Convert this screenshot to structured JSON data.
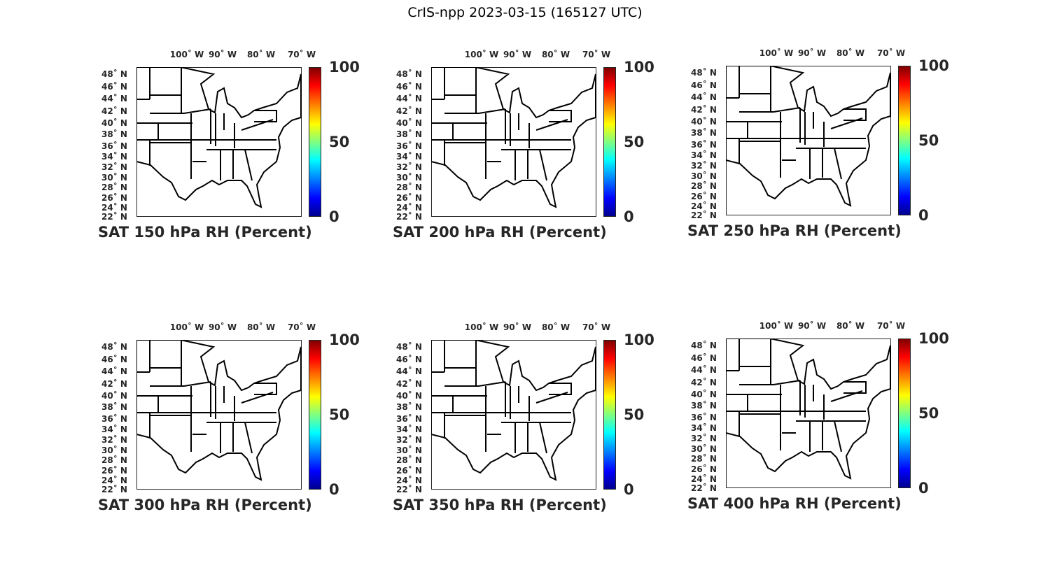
{
  "figure_title": "CrIS-npp 2023-03-15 (165127 UTC)",
  "lon_labels": [
    "100˚ W",
    "90˚ W",
    "80˚ W",
    "70˚ W"
  ],
  "lat_labels": [
    "48˚ N",
    "46˚ N",
    "44˚ N",
    "42˚ N",
    "40˚ N",
    "38˚ N",
    "36˚ N",
    "34˚ N",
    "32˚ N",
    "30˚ N",
    "28˚ N",
    "26˚ N",
    "24˚ N",
    "22˚ N"
  ],
  "colorbar": {
    "colormap": "jet",
    "min": 0,
    "max": 100,
    "ticks": [
      "100",
      "50",
      "0"
    ]
  },
  "panels": [
    {
      "title": "SAT 150 hPa RH (Percent)"
    },
    {
      "title": "SAT 200 hPa RH (Percent)"
    },
    {
      "title": "SAT 250 hPa RH (Percent)"
    },
    {
      "title": "SAT 300 hPa RH (Percent)"
    },
    {
      "title": "SAT 350 hPa RH (Percent)"
    },
    {
      "title": "SAT 400 hPa RH (Percent)"
    }
  ]
}
